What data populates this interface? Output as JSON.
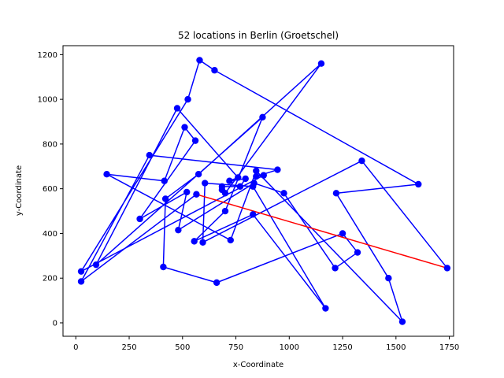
{
  "chart_data": {
    "type": "line",
    "title": "52 locations in Berlin (Groetschel)",
    "xlabel": "x-Coordinate",
    "ylabel": "y-Coordinate",
    "xlim": [
      -60,
      1770
    ],
    "ylim": [
      -60,
      1240
    ],
    "xticks": [
      0,
      250,
      500,
      750,
      1000,
      1250,
      1500,
      1750
    ],
    "yticks": [
      0,
      200,
      400,
      600,
      800,
      1000,
      1200
    ],
    "grid": false,
    "legend": "none",
    "series": [
      {
        "style": "tour",
        "color": "#0000ff",
        "marker": "circle",
        "x": [
          565,
          25,
          345,
          945,
          845,
          880,
          25,
          525,
          580,
          650,
          1605,
          1220,
          1465,
          1530,
          845,
          725,
          145,
          415,
          510,
          560,
          300,
          520,
          480,
          835,
          975,
          1215,
          1320,
          1250,
          660,
          410,
          420,
          575,
          1150,
          700,
          685,
          685,
          770,
          795,
          720,
          760,
          475,
          95,
          875,
          700,
          555,
          830,
          1170,
          830,
          605,
          595,
          1340,
          1740
        ],
        "y": [
          575,
          185,
          750,
          685,
          655,
          660,
          230,
          1000,
          1175,
          1130,
          620,
          580,
          200,
          5,
          680,
          370,
          665,
          635,
          875,
          815,
          465,
          585,
          415,
          625,
          580,
          245,
          315,
          400,
          180,
          250,
          555,
          665,
          1160,
          580,
          595,
          610,
          610,
          645,
          635,
          650,
          960,
          260,
          920,
          500,
          365,
          485,
          65,
          610,
          625,
          360,
          725,
          245
        ]
      },
      {
        "style": "closing-edge",
        "color": "#ff0000",
        "x": [
          1740,
          565
        ],
        "y": [
          245,
          575
        ]
      }
    ]
  }
}
